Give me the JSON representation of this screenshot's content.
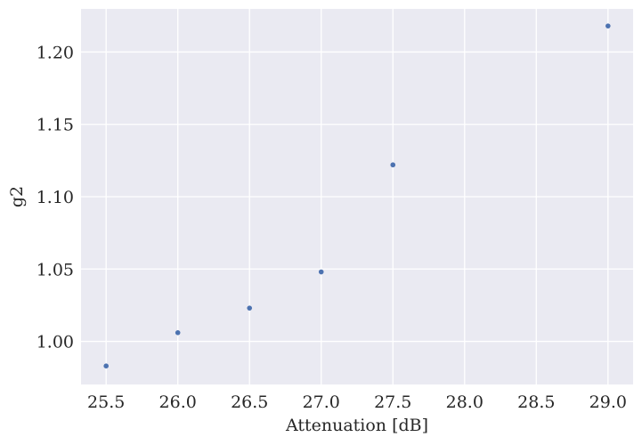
{
  "chart_data": {
    "type": "scatter",
    "x_label": "Attenuation [dB]",
    "y_label": "g2",
    "x": [
      25.5,
      26.0,
      26.5,
      27.0,
      27.5,
      29.0
    ],
    "series": [
      {
        "color": "#4c72b0",
        "values": [
          0.983,
          1.006,
          1.023,
          1.048,
          1.122,
          1.218
        ]
      }
    ],
    "xlim": [
      25.325,
      29.175
    ],
    "ylim": [
      0.9702,
      1.2298
    ],
    "xticks": [
      25.5,
      {
        "value": 26.0,
        "label": "26.0"
      },
      26.5,
      {
        "value": 27.0,
        "label": "27.0"
      },
      27.5,
      {
        "value": 28.0,
        "label": "28.0"
      },
      28.5,
      {
        "value": 29.0,
        "label": "29.0"
      }
    ],
    "yticks": [
      {
        "value": 1.0,
        "label": "1.00"
      },
      1.05,
      {
        "value": 1.1,
        "label": "1.10"
      },
      1.15,
      {
        "value": 1.2,
        "label": "1.20"
      }
    ],
    "grid": true,
    "background": "#eaeaf2"
  }
}
